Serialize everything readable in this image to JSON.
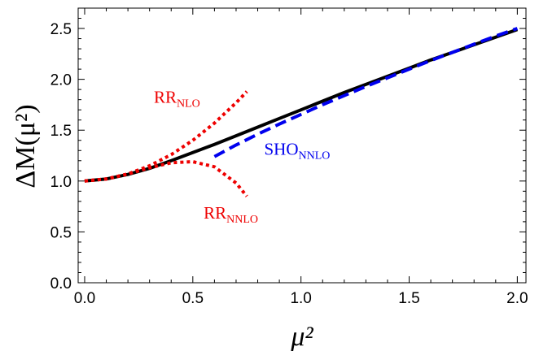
{
  "chart_data": {
    "type": "line",
    "xlabel": "μ²",
    "ylabel": "ΔM(μ²)",
    "xlim": [
      -0.03,
      2.04
    ],
    "ylim": [
      0.0,
      2.7
    ],
    "x_ticks": [
      0.0,
      0.5,
      1.0,
      1.5,
      2.0
    ],
    "x_tick_labels": [
      "0.0",
      "0.5",
      "1.0",
      "1.5",
      "2.0"
    ],
    "y_ticks": [
      0.0,
      0.5,
      1.0,
      1.5,
      2.0,
      2.5
    ],
    "y_tick_labels": [
      "0.0",
      "0.5",
      "1.0",
      "1.5",
      "2.0",
      "2.5"
    ],
    "grid": false,
    "series": [
      {
        "color": "#000000",
        "style": "solid",
        "x": [
          0.0,
          0.1,
          0.2,
          0.3,
          0.4,
          0.5,
          0.6,
          0.7,
          0.8,
          0.9,
          1.0,
          1.1,
          1.2,
          1.3,
          1.4,
          1.5,
          1.6,
          1.7,
          1.8,
          1.9,
          2.0
        ],
        "y": [
          1.0,
          1.02,
          1.065,
          1.125,
          1.2,
          1.28,
          1.36,
          1.445,
          1.53,
          1.615,
          1.7,
          1.785,
          1.87,
          1.95,
          2.03,
          2.11,
          2.19,
          2.265,
          2.34,
          2.415,
          2.49
        ]
      },
      {
        "color": "#0000ee",
        "style": "dashed",
        "x": [
          0.6,
          0.7,
          0.8,
          0.9,
          1.0,
          1.1,
          1.2,
          1.3,
          1.4,
          1.5,
          1.6,
          1.7,
          1.8,
          1.9,
          2.0
        ],
        "y": [
          1.24,
          1.355,
          1.46,
          1.56,
          1.655,
          1.75,
          1.84,
          1.93,
          2.015,
          2.1,
          2.185,
          2.265,
          2.345,
          2.425,
          2.5
        ]
      },
      {
        "color": "#ee0000",
        "style": "dotted",
        "x": [
          0.0,
          0.1,
          0.2,
          0.3,
          0.4,
          0.5,
          0.6,
          0.7,
          0.75
        ],
        "y": [
          1.0,
          1.02,
          1.07,
          1.15,
          1.26,
          1.4,
          1.57,
          1.77,
          1.88
        ]
      },
      {
        "color": "#ee0000",
        "style": "dotted",
        "x": [
          0.0,
          0.1,
          0.2,
          0.3,
          0.4,
          0.5,
          0.6,
          0.7,
          0.75
        ],
        "y": [
          1.0,
          1.02,
          1.07,
          1.13,
          1.18,
          1.19,
          1.14,
          0.98,
          0.85
        ]
      }
    ],
    "annotations": [
      {
        "main": "RR",
        "sub": "NLO",
        "color": "#ee0000",
        "x": 0.32,
        "y": 1.77
      },
      {
        "main": "SHO",
        "sub": "NNLO",
        "color": "#0000ee",
        "x": 0.83,
        "y": 1.26
      },
      {
        "main": "RR",
        "sub": "NNLO",
        "color": "#ee0000",
        "x": 0.55,
        "y": 0.63
      }
    ]
  }
}
